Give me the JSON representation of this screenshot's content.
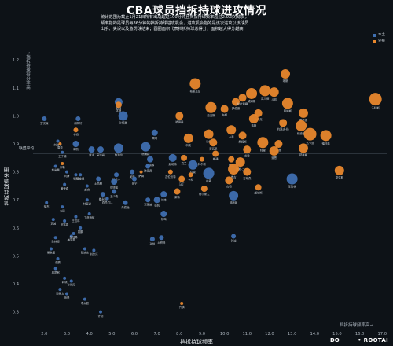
{
  "header": {
    "title": "CBA球员挡拆持球进攻情况",
    "desc_lines": [
      "统计范围为截止1月21日所有出战超过100分钟且挡拆持球频率超过2.0次的球员，",
      "频率指的是球员每36分钟的挡拆持球进攻机会，进攻机会指的是该次进攻以该球员",
      "出手、失误以及造罚球结束；圆圈面积代表挡拆持球总得分，面积越大得分越高"
    ]
  },
  "legend": {
    "items": [
      {
        "label": "本土",
        "color": "#3f6fb0"
      },
      {
        "label": "外援",
        "color": "#e8872c"
      }
    ]
  },
  "axis_text": {
    "y_title": "挡拆持球得分率",
    "x_title": "挡拆持球频率",
    "y_arrow": "↑挡拆持球得分率高",
    "x_arrow": "挡拆持球频率高→",
    "league_avg": "联盟平均"
  },
  "brand": {
    "left": "DO",
    "right": "• ROOTAI"
  },
  "chart_data": {
    "type": "scatter",
    "title": "CBA球员挡拆持球进攻情况",
    "xlabel": "挡拆持球频率",
    "ylabel": "挡拆持球得分率",
    "xlim": [
      1.5,
      17.2
    ],
    "ylim": [
      0.24,
      1.24
    ],
    "x_ticks": [
      2.0,
      3.0,
      4.0,
      5.0,
      6.0,
      7.0,
      8.0,
      9.0,
      10.0,
      11.0,
      12.0,
      13.0,
      14.0,
      15.0,
      16.0,
      17.0
    ],
    "y_ticks": [
      0.3,
      0.4,
      0.5,
      0.6,
      0.7,
      0.8,
      0.9,
      1.0,
      1.1,
      1.2
    ],
    "league_average_y": 0.865,
    "grid": false,
    "legend_position": "top-right",
    "series": [
      {
        "name": "本土",
        "color": "#3f6fb0",
        "points": [
          {
            "x": 2.0,
            "y": 0.99,
            "r": 3,
            "label": "罗汉琛"
          },
          {
            "x": 3.5,
            "y": 0.99,
            "r": 3,
            "label": "胡明轩"
          },
          {
            "x": 5.3,
            "y": 1.05,
            "r": 5,
            "label": "原帅"
          },
          {
            "x": 5.5,
            "y": 1.0,
            "r": 6,
            "label": "孙铭徽"
          },
          {
            "x": 6.9,
            "y": 0.94,
            "r": 4,
            "label": "周琦"
          },
          {
            "x": 2.6,
            "y": 0.91,
            "r": 2,
            "label": "刘晓宇"
          },
          {
            "x": 2.8,
            "y": 0.87,
            "r": 2,
            "label": "王子瑞"
          },
          {
            "x": 3.4,
            "y": 0.9,
            "r": 4,
            "label": "郭凯"
          },
          {
            "x": 4.1,
            "y": 0.88,
            "r": 4,
            "label": "曾冰"
          },
          {
            "x": 4.5,
            "y": 0.88,
            "r": 4,
            "label": "高诗岩"
          },
          {
            "x": 5.3,
            "y": 0.885,
            "r": 6,
            "label": "焦海龙"
          },
          {
            "x": 6.5,
            "y": 0.89,
            "r": 6,
            "label": "杨瀚森"
          },
          {
            "x": 7.7,
            "y": 0.85,
            "r": 5,
            "label": "赵继伟"
          },
          {
            "x": 6.7,
            "y": 0.845,
            "r": 4,
            "label": "张镇麟"
          },
          {
            "x": 2.5,
            "y": 0.82,
            "r": 2,
            "label": "赵岩昊"
          },
          {
            "x": 3.0,
            "y": 0.8,
            "r": 2,
            "label": "刘铮"
          },
          {
            "x": 3.4,
            "y": 0.79,
            "r": 2,
            "label": "邹阳"
          },
          {
            "x": 3.6,
            "y": 0.79,
            "r": 2,
            "label": "杨金煜"
          },
          {
            "x": 4.4,
            "y": 0.775,
            "r": 3,
            "label": "王岚嵚"
          },
          {
            "x": 5.2,
            "y": 0.79,
            "r": 3,
            "label": "贺希宁"
          },
          {
            "x": 5.9,
            "y": 0.8,
            "r": 3,
            "label": "吴前"
          },
          {
            "x": 6.6,
            "y": 0.82,
            "r": 3,
            "label": "韩德君"
          },
          {
            "x": 8.6,
            "y": 0.825,
            "r": 6,
            "label": "付豪"
          },
          {
            "x": 2.9,
            "y": 0.755,
            "r": 2,
            "label": "黄荣奇"
          },
          {
            "x": 3.9,
            "y": 0.75,
            "r": 2,
            "label": "赵睿"
          },
          {
            "x": 5.1,
            "y": 0.765,
            "r": 4,
            "label": "程帅澎"
          },
          {
            "x": 6.0,
            "y": 0.775,
            "r": 3,
            "label": "张宁"
          },
          {
            "x": 4.6,
            "y": 0.72,
            "r": 3,
            "label": "崔永熙"
          },
          {
            "x": 5.1,
            "y": 0.73,
            "r": 3,
            "label": "王少杰"
          },
          {
            "x": 2.1,
            "y": 0.69,
            "r": 2,
            "label": "徐杰"
          },
          {
            "x": 2.8,
            "y": 0.675,
            "r": 2,
            "label": "方硕"
          },
          {
            "x": 3.9,
            "y": 0.7,
            "r": 2,
            "label": "林庭谦"
          },
          {
            "x": 4.8,
            "y": 0.705,
            "r": 2,
            "label": "西热力江"
          },
          {
            "x": 3.4,
            "y": 0.64,
            "r": 2,
            "label": "王哲林"
          },
          {
            "x": 4.0,
            "y": 0.65,
            "r": 2,
            "label": "丁彦雨航"
          },
          {
            "x": 5.6,
            "y": 0.69,
            "r": 3,
            "label": "朱俊龙"
          },
          {
            "x": 6.6,
            "y": 0.7,
            "r": 3,
            "label": "李荣培"
          },
          {
            "x": 7.0,
            "y": 0.7,
            "r": 4,
            "label": "张帆"
          },
          {
            "x": 7.3,
            "y": 0.72,
            "r": 4,
            "label": "刘炜"
          },
          {
            "x": 10.4,
            "y": 0.715,
            "r": 6,
            "label": "邹雨宸"
          },
          {
            "x": 13.0,
            "y": 0.775,
            "r": 7,
            "label": "王哲林"
          },
          {
            "x": 9.3,
            "y": 0.795,
            "r": 7,
            "label": "林葳"
          },
          {
            "x": 2.4,
            "y": 0.63,
            "r": 2,
            "label": "贾诚"
          },
          {
            "x": 2.9,
            "y": 0.625,
            "r": 2,
            "label": "祝铭震"
          },
          {
            "x": 3.6,
            "y": 0.6,
            "r": 2,
            "label": "周鹏"
          },
          {
            "x": 2.5,
            "y": 0.565,
            "r": 2,
            "label": "陈林坚"
          },
          {
            "x": 3.2,
            "y": 0.57,
            "r": 2,
            "label": "姜宇星"
          },
          {
            "x": 3.3,
            "y": 0.58,
            "r": 2,
            "label": "吴冠希"
          },
          {
            "x": 7.3,
            "y": 0.65,
            "r": 4,
            "label": "杨鸣"
          },
          {
            "x": 6.8,
            "y": 0.56,
            "r": 3,
            "label": "孙悦"
          },
          {
            "x": 7.2,
            "y": 0.565,
            "r": 3,
            "label": "王睿泽"
          },
          {
            "x": 10.4,
            "y": 0.57,
            "r": 3,
            "label": "钟诚"
          },
          {
            "x": 2.3,
            "y": 0.525,
            "r": 2,
            "label": "吴永盛"
          },
          {
            "x": 3.8,
            "y": 0.525,
            "r": 2,
            "label": "陈培东"
          },
          {
            "x": 4.2,
            "y": 0.52,
            "r": 2,
            "label": "刘传兴"
          },
          {
            "x": 2.6,
            "y": 0.49,
            "r": 2,
            "label": "张鹏"
          },
          {
            "x": 2.5,
            "y": 0.455,
            "r": 2,
            "label": "段昂君"
          },
          {
            "x": 2.9,
            "y": 0.42,
            "r": 2,
            "label": "韩硕"
          },
          {
            "x": 3.2,
            "y": 0.41,
            "r": 2,
            "label": "孙鸣阳"
          },
          {
            "x": 2.7,
            "y": 0.38,
            "r": 2,
            "label": "郭昊文"
          },
          {
            "x": 3.0,
            "y": 0.365,
            "r": 2,
            "label": "张昊"
          },
          {
            "x": 3.8,
            "y": 0.345,
            "r": 2,
            "label": "李炎哲"
          },
          {
            "x": 4.5,
            "y": 0.3,
            "r": 2,
            "label": "许钊"
          }
        ]
      },
      {
        "name": "外援",
        "color": "#e8872c",
        "points": [
          {
            "x": 12.7,
            "y": 1.15,
            "r": 6,
            "label": "琼斯"
          },
          {
            "x": 8.7,
            "y": 1.115,
            "r": 7,
            "label": "布莱克尼"
          },
          {
            "x": 11.2,
            "y": 1.08,
            "r": 7,
            "label": "威姆斯"
          },
          {
            "x": 11.8,
            "y": 1.09,
            "r": 7,
            "label": "莫兰德"
          },
          {
            "x": 12.2,
            "y": 1.085,
            "r": 6,
            "label": "马尚"
          },
          {
            "x": 10.5,
            "y": 1.05,
            "r": 5,
            "label": "罗伯逊"
          },
          {
            "x": 10.8,
            "y": 1.065,
            "r": 5,
            "label": "拉杜利察"
          },
          {
            "x": 12.8,
            "y": 1.045,
            "r": 7,
            "label": "阿姆斯"
          },
          {
            "x": 5.3,
            "y": 1.04,
            "r": 4,
            "label": "李根"
          },
          {
            "x": 9.4,
            "y": 1.03,
            "r": 7,
            "label": "亚当斯"
          },
          {
            "x": 10.0,
            "y": 1.025,
            "r": 5,
            "label": "布朗"
          },
          {
            "x": 11.5,
            "y": 1.01,
            "r": 5,
            "label": "沙约克"
          },
          {
            "x": 13.5,
            "y": 1.01,
            "r": 6,
            "label": "霍华德"
          },
          {
            "x": 16.7,
            "y": 1.06,
            "r": 8,
            "label": "沃特斯"
          },
          {
            "x": 8.0,
            "y": 1.0,
            "r": 5,
            "label": "哈德森"
          },
          {
            "x": 11.3,
            "y": 0.99,
            "r": 6,
            "label": "弗格"
          },
          {
            "x": 12.6,
            "y": 0.975,
            "r": 5,
            "label": "约瑟夫-杨"
          },
          {
            "x": 13.4,
            "y": 0.965,
            "r": 7,
            "label": "穆迪埃"
          },
          {
            "x": 10.3,
            "y": 0.95,
            "r": 6,
            "label": "卡森"
          },
          {
            "x": 9.3,
            "y": 0.935,
            "r": 6,
            "label": "沃伦"
          },
          {
            "x": 10.8,
            "y": 0.93,
            "r": 5,
            "label": "詹姆斯"
          },
          {
            "x": 11.7,
            "y": 0.905,
            "r": 7,
            "label": "特里"
          },
          {
            "x": 13.8,
            "y": 0.935,
            "r": 8,
            "label": "达卡迪"
          },
          {
            "x": 14.5,
            "y": 0.93,
            "r": 7,
            "label": "福特森"
          },
          {
            "x": 8.4,
            "y": 0.92,
            "r": 6,
            "label": "科克"
          },
          {
            "x": 12.4,
            "y": 0.9,
            "r": 5,
            "label": "麦基"
          },
          {
            "x": 9.5,
            "y": 0.905,
            "r": 5,
            "label": "贾瓦里"
          },
          {
            "x": 11.0,
            "y": 0.88,
            "r": 5,
            "label": "戈登"
          },
          {
            "x": 12.2,
            "y": 0.875,
            "r": 6,
            "label": "曼恩"
          },
          {
            "x": 13.5,
            "y": 0.885,
            "r": 6,
            "label": "萨林格"
          },
          {
            "x": 2.7,
            "y": 0.9,
            "r": 2,
            "label": "周奕"
          },
          {
            "x": 8.2,
            "y": 0.85,
            "r": 4,
            "label": "莫兰"
          },
          {
            "x": 10.3,
            "y": 0.845,
            "r": 4,
            "label": "阿丘"
          },
          {
            "x": 9.6,
            "y": 0.865,
            "r": 4,
            "label": "斯通"
          },
          {
            "x": 10.7,
            "y": 0.835,
            "r": 6,
            "label": "琼斯-二"
          },
          {
            "x": 10.4,
            "y": 0.81,
            "r": 7,
            "label": "希古"
          },
          {
            "x": 15.1,
            "y": 0.805,
            "r": 6,
            "label": "勒克斯"
          },
          {
            "x": 9.0,
            "y": 0.845,
            "r": 3,
            "label": "拜尔斯"
          },
          {
            "x": 8.5,
            "y": 0.79,
            "r": 3,
            "label": "卡杜"
          },
          {
            "x": 6.3,
            "y": 0.8,
            "r": 2,
            "label": "萨姆"
          },
          {
            "x": 7.6,
            "y": 0.8,
            "r": 3,
            "label": "吉伦沃特"
          },
          {
            "x": 11.0,
            "y": 0.8,
            "r": 5,
            "label": "吉布森"
          },
          {
            "x": 10.2,
            "y": 0.77,
            "r": 5,
            "label": "杰特"
          },
          {
            "x": 8.1,
            "y": 0.775,
            "r": 4,
            "label": "马丁"
          },
          {
            "x": 7.9,
            "y": 0.73,
            "r": 4,
            "label": "莱特"
          },
          {
            "x": 9.1,
            "y": 0.74,
            "r": 4,
            "label": "阿尔斯兰"
          },
          {
            "x": 3.4,
            "y": 0.95,
            "r": 3,
            "label": "卡特"
          },
          {
            "x": 11.5,
            "y": 0.745,
            "r": 4,
            "label": "威尔斯"
          },
          {
            "x": 2.8,
            "y": 0.83,
            "r": 2,
            "label": "米勒"
          },
          {
            "x": 8.1,
            "y": 0.33,
            "r": 2,
            "label": "齐麟"
          }
        ]
      }
    ]
  }
}
